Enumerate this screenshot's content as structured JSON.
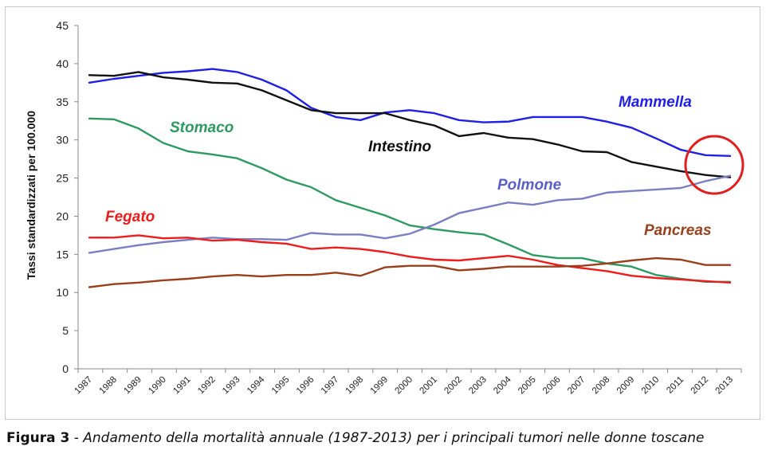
{
  "chart_data": {
    "type": "line",
    "ylabel": "Tassi standardizzati per 100.000",
    "xlabel": "",
    "ylim": [
      0,
      45
    ],
    "yticks": [
      0,
      5,
      10,
      15,
      20,
      25,
      30,
      35,
      40,
      45
    ],
    "categories": [
      "1987",
      "1988",
      "1989",
      "1990",
      "1991",
      "1992",
      "1993",
      "1994",
      "1995",
      "1996",
      "1997",
      "1998",
      "1999",
      "2000",
      "2001",
      "2002",
      "2003",
      "2004",
      "2005",
      "2006",
      "2007",
      "2008",
      "2009",
      "2010",
      "2011",
      "2012",
      "2013"
    ],
    "series": [
      {
        "name": "Mammella",
        "color": "#1f1fe6",
        "values": [
          37.5,
          38.0,
          38.4,
          38.8,
          39.0,
          39.3,
          38.9,
          37.9,
          36.5,
          34.2,
          33.0,
          32.6,
          33.6,
          33.9,
          33.5,
          32.6,
          32.3,
          32.4,
          33.0,
          33.0,
          33.0,
          32.4,
          31.6,
          30.2,
          28.7,
          28.0,
          27.9
        ]
      },
      {
        "name": "Intestino",
        "color": "#111111",
        "values": [
          38.5,
          38.4,
          38.9,
          38.2,
          37.9,
          37.5,
          37.4,
          36.5,
          35.2,
          33.9,
          33.5,
          33.5,
          33.5,
          32.6,
          31.9,
          30.5,
          30.9,
          30.3,
          30.1,
          29.4,
          28.5,
          28.4,
          27.1,
          26.5,
          25.9,
          25.4,
          25.1
        ]
      },
      {
        "name": "Stomaco",
        "color": "#2e9960",
        "values": [
          32.8,
          32.7,
          31.5,
          29.6,
          28.5,
          28.1,
          27.6,
          26.3,
          24.8,
          23.8,
          22.1,
          21.1,
          20.1,
          18.8,
          18.3,
          17.9,
          17.6,
          16.3,
          14.9,
          14.5,
          14.5,
          13.8,
          13.4,
          12.3,
          11.8,
          11.4,
          11.4
        ]
      },
      {
        "name": "Polmone",
        "color": "#7b7fc1",
        "values": [
          15.2,
          15.7,
          16.2,
          16.6,
          16.9,
          17.2,
          17.0,
          17.0,
          16.9,
          17.8,
          17.6,
          17.6,
          17.1,
          17.7,
          18.9,
          20.4,
          21.1,
          21.8,
          21.5,
          22.1,
          22.3,
          23.1,
          23.3,
          23.5,
          23.7,
          24.6,
          25.3
        ]
      },
      {
        "name": "Fegato",
        "color": "#ee1c1c",
        "values": [
          17.2,
          17.2,
          17.5,
          17.1,
          17.2,
          16.8,
          16.9,
          16.6,
          16.4,
          15.7,
          15.9,
          15.7,
          15.3,
          14.7,
          14.3,
          14.2,
          14.5,
          14.8,
          14.3,
          13.6,
          13.2,
          12.8,
          12.2,
          11.9,
          11.7,
          11.5,
          11.3
        ]
      },
      {
        "name": "Pancreas",
        "color": "#993f1c",
        "values": [
          10.7,
          11.1,
          11.3,
          11.6,
          11.8,
          12.1,
          12.3,
          12.1,
          12.3,
          12.3,
          12.6,
          12.2,
          13.3,
          13.5,
          13.5,
          12.9,
          13.1,
          13.4,
          13.4,
          13.4,
          13.5,
          13.8,
          14.2,
          14.5,
          14.3,
          13.6,
          13.6
        ]
      }
    ],
    "series_labels": {
      "mammella": "Mammella",
      "intestino": "Intestino",
      "stomaco": "Stomaco",
      "polmone": "Polmone",
      "fegato": "Fegato",
      "pancreas": "Pancreas"
    },
    "annotation": "red circle around the 2013 convergence of Intestino and Polmone"
  },
  "caption": {
    "figure": "Figura 3",
    "text": " - Andamento della mortalità annuale (1987-2013) per i principali tumori nelle donne toscane"
  }
}
